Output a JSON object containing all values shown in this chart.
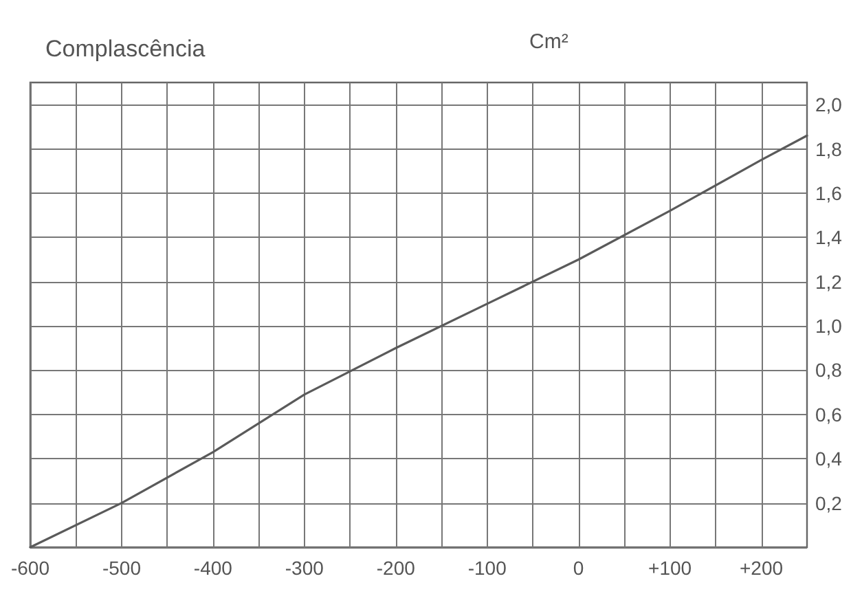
{
  "chart_data": {
    "type": "line",
    "title": "Complascência",
    "ylabel": "Cm²",
    "x": [
      -600,
      -500,
      -400,
      -300,
      -200,
      -100,
      0,
      100,
      200,
      250
    ],
    "series": [
      {
        "color": "#5a5a5a",
        "values": [
          0,
          0.2,
          0.43,
          0.69,
          0.9,
          1.1,
          1.3,
          1.52,
          1.75,
          1.86
        ]
      }
    ],
    "xlim": [
      -600,
      250
    ],
    "xticks": [
      -600,
      {
        "value": -550,
        "label": null
      },
      -500,
      {
        "value": -450,
        "label": null
      },
      -400,
      {
        "value": -350,
        "label": null
      },
      -300,
      {
        "value": -250,
        "label": null
      },
      -200,
      {
        "value": -150,
        "label": null
      },
      -100,
      {
        "value": -50,
        "label": null
      },
      0,
      {
        "value": 50,
        "label": null
      },
      {
        "value": 100,
        "label": "+100"
      },
      {
        "value": 150,
        "label": null
      },
      {
        "value": 200,
        "label": "+200"
      }
    ],
    "ylim": [
      0,
      2.1
    ],
    "yticks": [
      {
        "value": 0,
        "label": null
      },
      {
        "value": 0.2,
        "label": "0,2"
      },
      {
        "value": 0.4,
        "label": "0,4"
      },
      {
        "value": 0.6,
        "label": "0,6"
      },
      {
        "value": 0.8,
        "label": "0,8"
      },
      {
        "value": 1.0,
        "label": "1,0"
      },
      {
        "value": 1.2,
        "label": "1,2"
      },
      {
        "value": 1.4,
        "label": "1,4"
      },
      {
        "value": 1.6,
        "label": "1,6"
      },
      {
        "value": 1.8,
        "label": "1,8"
      },
      {
        "value": 2.0,
        "label": "2,0"
      }
    ],
    "grid": true,
    "marker": "none",
    "line_style": "solid"
  }
}
